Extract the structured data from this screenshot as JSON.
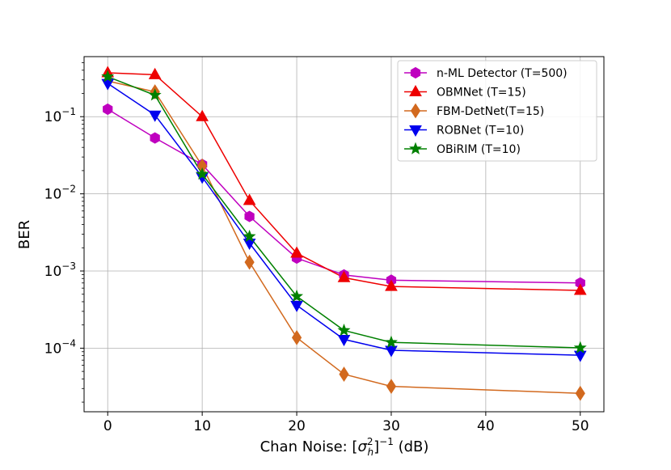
{
  "chart_data": {
    "type": "line",
    "title": "",
    "xlabel_main": "Chan Noise: [",
    "xlabel_sigma": "σ",
    "xlabel_sup": "2",
    "xlabel_sub": "h",
    "xlabel_close": "]",
    "xlabel_exp": "−1",
    "xlabel_unit": " (dB)",
    "ylabel": "BER",
    "yscale": "log",
    "xlim": [
      -2.5,
      52.5
    ],
    "ylim": [
      1.5e-05,
      0.6
    ],
    "grid": true,
    "legend_position": "top-right",
    "x_ticks": [
      0,
      10,
      20,
      30,
      40,
      50
    ],
    "y_ticks": [
      {
        "value": 0.1,
        "base": "10",
        "exp": "−1"
      },
      {
        "value": 0.01,
        "base": "10",
        "exp": "−2"
      },
      {
        "value": 0.001,
        "base": "10",
        "exp": "−3"
      },
      {
        "value": 0.0001,
        "base": "10",
        "exp": "−4"
      }
    ],
    "x": [
      0,
      5,
      10,
      15,
      20,
      25,
      30,
      50
    ],
    "series": [
      {
        "name": "n-ML Detector (T=500)",
        "color": "#bf00bf",
        "marker": "hexagon",
        "values": [
          0.125,
          0.053,
          0.024,
          0.0051,
          0.00147,
          0.00089,
          0.00076,
          0.0007
        ]
      },
      {
        "name": "OBMNet (T=15)",
        "color": "#ee0000",
        "marker": "triangle-up",
        "values": [
          0.37,
          0.35,
          0.1,
          0.0082,
          0.0017,
          0.00082,
          0.00063,
          0.00056
        ]
      },
      {
        "name": "FBM-DetNet(T=15)",
        "color": "#d2691e",
        "marker": "diamond",
        "values": [
          0.29,
          0.21,
          0.023,
          0.0013,
          0.000137,
          4.6e-05,
          3.2e-05,
          2.6e-05
        ]
      },
      {
        "name": "ROBNet (T=10)",
        "color": "#0000ee",
        "marker": "triangle-down",
        "values": [
          0.27,
          0.105,
          0.0165,
          0.0023,
          0.00036,
          0.00013,
          9.4e-05,
          8.1e-05
        ]
      },
      {
        "name": "OBiRIM (T=10)",
        "color": "#008000",
        "marker": "star",
        "values": [
          0.33,
          0.19,
          0.018,
          0.0028,
          0.00047,
          0.00017,
          0.000119,
          0.000101
        ]
      }
    ]
  }
}
